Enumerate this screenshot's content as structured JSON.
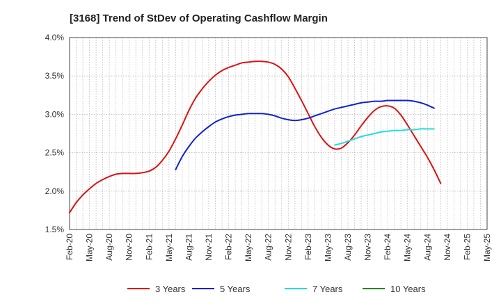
{
  "chart_data": {
    "type": "line",
    "title": "[3168]  Trend of StDev of Operating Cashflow Margin",
    "xlabel": "",
    "ylabel": "",
    "x_ticks": [
      "Feb-20",
      "May-20",
      "Aug-20",
      "Nov-20",
      "Feb-21",
      "May-21",
      "Aug-21",
      "Nov-21",
      "Feb-22",
      "May-22",
      "Aug-22",
      "Nov-22",
      "Feb-23",
      "May-23",
      "Aug-23",
      "Nov-23",
      "Feb-24",
      "May-24",
      "Aug-24",
      "Nov-24",
      "Feb-25",
      "May-25"
    ],
    "y_ticks": [
      "4.0%",
      "3.5%",
      "3.0%",
      "2.5%",
      "2.0%",
      "1.5%"
    ],
    "ylim": [
      1.5,
      4.0
    ],
    "grid": true,
    "legend_position": "bottom",
    "series": [
      {
        "name": "3 Years",
        "color": "#dd1111",
        "points": [
          [
            "Feb-20",
            1.72
          ],
          [
            "Mar-20",
            1.85
          ],
          [
            "Apr-20",
            1.95
          ],
          [
            "May-20",
            2.03
          ],
          [
            "Jun-20",
            2.1
          ],
          [
            "Jul-20",
            2.15
          ],
          [
            "Aug-20",
            2.19
          ],
          [
            "Sep-20",
            2.22
          ],
          [
            "Oct-20",
            2.23
          ],
          [
            "Nov-20",
            2.23
          ],
          [
            "Dec-20",
            2.23
          ],
          [
            "Jan-21",
            2.24
          ],
          [
            "Feb-21",
            2.26
          ],
          [
            "Mar-21",
            2.31
          ],
          [
            "Apr-21",
            2.4
          ],
          [
            "May-21",
            2.52
          ],
          [
            "Jun-21",
            2.68
          ],
          [
            "Jul-21",
            2.86
          ],
          [
            "Aug-21",
            3.05
          ],
          [
            "Sep-21",
            3.21
          ],
          [
            "Oct-21",
            3.33
          ],
          [
            "Nov-21",
            3.43
          ],
          [
            "Dec-21",
            3.51
          ],
          [
            "Jan-22",
            3.57
          ],
          [
            "Feb-22",
            3.61
          ],
          [
            "Mar-22",
            3.64
          ],
          [
            "Apr-22",
            3.67
          ],
          [
            "May-22",
            3.68
          ],
          [
            "Jun-22",
            3.69
          ],
          [
            "Jul-22",
            3.69
          ],
          [
            "Aug-22",
            3.68
          ],
          [
            "Sep-22",
            3.65
          ],
          [
            "Oct-22",
            3.59
          ],
          [
            "Nov-22",
            3.49
          ],
          [
            "Dec-22",
            3.34
          ],
          [
            "Jan-23",
            3.18
          ],
          [
            "Feb-23",
            3.01
          ],
          [
            "Mar-23",
            2.84
          ],
          [
            "Apr-23",
            2.7
          ],
          [
            "May-23",
            2.6
          ],
          [
            "Jun-23",
            2.55
          ],
          [
            "Jul-23",
            2.56
          ],
          [
            "Aug-23",
            2.63
          ],
          [
            "Sep-23",
            2.73
          ],
          [
            "Oct-23",
            2.85
          ],
          [
            "Nov-23",
            2.96
          ],
          [
            "Dec-23",
            3.05
          ],
          [
            "Jan-24",
            3.1
          ],
          [
            "Feb-24",
            3.11
          ],
          [
            "Mar-24",
            3.08
          ],
          [
            "Apr-24",
            2.99
          ],
          [
            "May-24",
            2.86
          ],
          [
            "Jun-24",
            2.72
          ],
          [
            "Jul-24",
            2.58
          ],
          [
            "Aug-24",
            2.44
          ],
          [
            "Sep-24",
            2.28
          ],
          [
            "Oct-24",
            2.1
          ]
        ]
      },
      {
        "name": "5 Years",
        "color": "#1122cc",
        "points": [
          [
            "Jun-21",
            2.28
          ],
          [
            "Jul-21",
            2.45
          ],
          [
            "Aug-21",
            2.58
          ],
          [
            "Sep-21",
            2.69
          ],
          [
            "Oct-21",
            2.77
          ],
          [
            "Nov-21",
            2.84
          ],
          [
            "Dec-21",
            2.9
          ],
          [
            "Jan-22",
            2.94
          ],
          [
            "Feb-22",
            2.97
          ],
          [
            "Mar-22",
            2.99
          ],
          [
            "Apr-22",
            3.0
          ],
          [
            "May-22",
            3.01
          ],
          [
            "Jun-22",
            3.01
          ],
          [
            "Jul-22",
            3.01
          ],
          [
            "Aug-22",
            3.0
          ],
          [
            "Sep-22",
            2.98
          ],
          [
            "Oct-22",
            2.95
          ],
          [
            "Nov-22",
            2.93
          ],
          [
            "Dec-22",
            2.92
          ],
          [
            "Jan-23",
            2.93
          ],
          [
            "Feb-23",
            2.95
          ],
          [
            "Mar-23",
            2.98
          ],
          [
            "Apr-23",
            3.01
          ],
          [
            "May-23",
            3.04
          ],
          [
            "Jun-23",
            3.07
          ],
          [
            "Jul-23",
            3.09
          ],
          [
            "Aug-23",
            3.11
          ],
          [
            "Sep-23",
            3.13
          ],
          [
            "Oct-23",
            3.15
          ],
          [
            "Nov-23",
            3.16
          ],
          [
            "Dec-23",
            3.17
          ],
          [
            "Jan-24",
            3.17
          ],
          [
            "Feb-24",
            3.18
          ],
          [
            "Mar-24",
            3.18
          ],
          [
            "Apr-24",
            3.18
          ],
          [
            "May-24",
            3.18
          ],
          [
            "Jun-24",
            3.17
          ],
          [
            "Jul-24",
            3.15
          ],
          [
            "Aug-24",
            3.12
          ],
          [
            "Sep-24",
            3.08
          ]
        ]
      },
      {
        "name": "7 Years",
        "color": "#22dddd",
        "points": [
          [
            "Jun-23",
            2.6
          ],
          [
            "Jul-23",
            2.62
          ],
          [
            "Aug-23",
            2.65
          ],
          [
            "Sep-23",
            2.68
          ],
          [
            "Oct-23",
            2.71
          ],
          [
            "Nov-23",
            2.73
          ],
          [
            "Dec-23",
            2.75
          ],
          [
            "Jan-24",
            2.77
          ],
          [
            "Feb-24",
            2.78
          ],
          [
            "Mar-24",
            2.79
          ],
          [
            "Apr-24",
            2.79
          ],
          [
            "May-24",
            2.8
          ],
          [
            "Jun-24",
            2.8
          ],
          [
            "Jul-24",
            2.81
          ],
          [
            "Aug-24",
            2.81
          ],
          [
            "Sep-24",
            2.81
          ]
        ]
      },
      {
        "name": "10 Years",
        "color": "#228822",
        "points": []
      }
    ]
  }
}
